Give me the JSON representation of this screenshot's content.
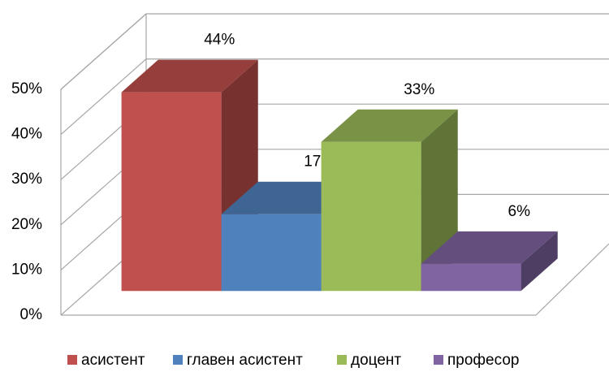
{
  "chart_data": {
    "type": "bar3d",
    "series": [
      {
        "name": "асистент",
        "color": "#c0504d",
        "values": [
          44
        ],
        "value_labels": [
          "44%"
        ]
      },
      {
        "name": "главен асистент",
        "color": "#4f81bd",
        "values": [
          17
        ],
        "value_labels": [
          "17%"
        ]
      },
      {
        "name": "доцент",
        "color": "#9bbb59",
        "values": [
          33
        ],
        "value_labels": [
          "33%"
        ]
      },
      {
        "name": "професор",
        "color": "#8064a2",
        "values": [
          6
        ],
        "value_labels": [
          "6%"
        ]
      }
    ],
    "ylim": [
      0,
      50
    ],
    "yticks": [
      {
        "value": 0,
        "label": "0%"
      },
      {
        "value": 10,
        "label": "10%"
      },
      {
        "value": 20,
        "label": "20%"
      },
      {
        "value": 30,
        "label": "30%"
      },
      {
        "value": 40,
        "label": "40%"
      },
      {
        "value": 50,
        "label": "50%"
      }
    ],
    "grid": true,
    "legend": "bottom"
  }
}
